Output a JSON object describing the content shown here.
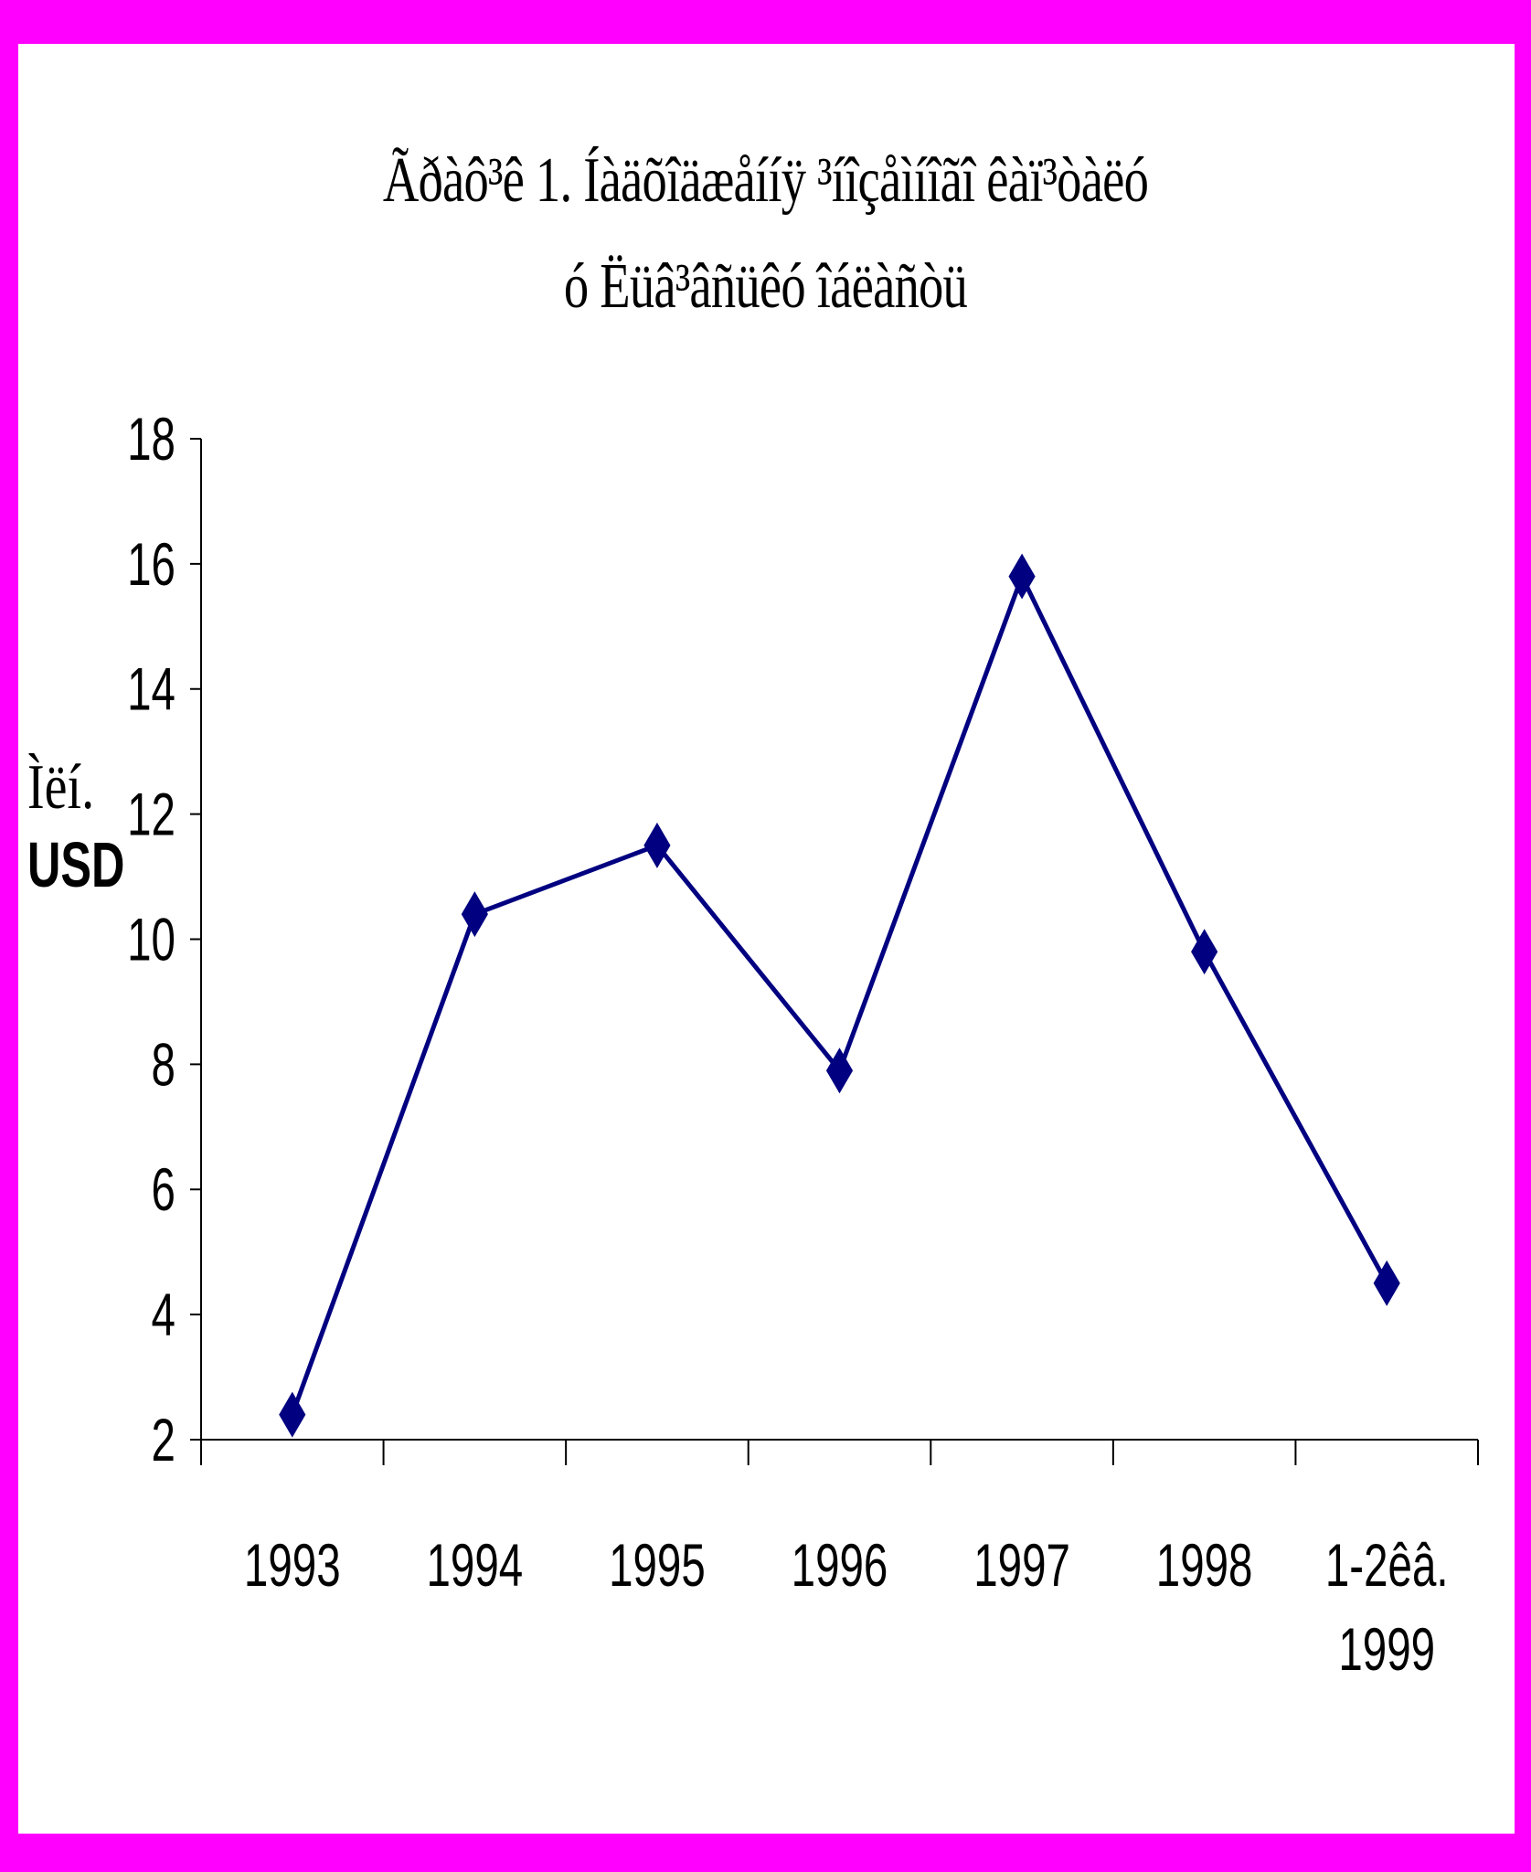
{
  "chart_data": {
    "type": "line",
    "title_lines": [
      "Ãðàô³ê 1. Íàäõîäæåííÿ ³íîçåìíîãî êàï³òàëó",
      "ó Ëüâ³âñüêó îáëàñòü"
    ],
    "ylabel_lines": [
      "Ìëí.",
      "USD"
    ],
    "categories": [
      "1993",
      "1994",
      "1995",
      "1996",
      "1997",
      "1998",
      "1-2êâ. 1999"
    ],
    "category_label_lines": [
      [
        "1993"
      ],
      [
        "1994"
      ],
      [
        "1995"
      ],
      [
        "1996"
      ],
      [
        "1997"
      ],
      [
        "1998"
      ],
      [
        "1-2êâ.",
        "1999"
      ]
    ],
    "series": [
      {
        "values": [
          2.4,
          10.4,
          11.5,
          7.9,
          15.8,
          9.8,
          4.5
        ]
      }
    ],
    "ylim": [
      2,
      18
    ],
    "yticks": [
      2,
      4,
      6,
      8,
      10,
      12,
      14,
      16,
      18
    ],
    "grid": false,
    "legend": "none",
    "marker": "diamond"
  },
  "colors": {
    "border": "#ff00ff",
    "plot_background": "#ffffff",
    "line": "#000080",
    "axis": "#000000"
  }
}
